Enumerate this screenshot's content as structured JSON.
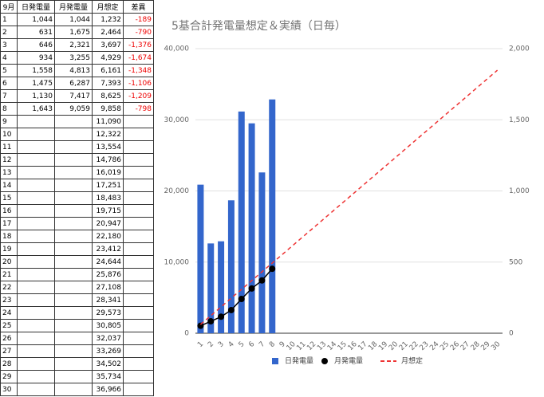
{
  "table": {
    "header": [
      "9月",
      "日発電量",
      "月発電量",
      "月想定",
      "差異"
    ],
    "rows": [
      [
        "1",
        "1,044",
        "1,044",
        "1,232",
        "-189"
      ],
      [
        "2",
        "631",
        "1,675",
        "2,464",
        "-790"
      ],
      [
        "3",
        "646",
        "2,321",
        "3,697",
        "-1,376"
      ],
      [
        "4",
        "934",
        "3,255",
        "4,929",
        "-1,674"
      ],
      [
        "5",
        "1,558",
        "4,813",
        "6,161",
        "-1,348"
      ],
      [
        "6",
        "1,475",
        "6,287",
        "7,393",
        "-1,106"
      ],
      [
        "7",
        "1,130",
        "7,417",
        "8,625",
        "-1,209"
      ],
      [
        "8",
        "1,643",
        "9,059",
        "9,858",
        "-798"
      ],
      [
        "9",
        null,
        null,
        "11,090",
        null
      ],
      [
        "10",
        null,
        null,
        "12,322",
        null
      ],
      [
        "11",
        null,
        null,
        "13,554",
        null
      ],
      [
        "12",
        null,
        null,
        "14,786",
        null
      ],
      [
        "13",
        null,
        null,
        "16,019",
        null
      ],
      [
        "14",
        null,
        null,
        "17,251",
        null
      ],
      [
        "15",
        null,
        null,
        "18,483",
        null
      ],
      [
        "16",
        null,
        null,
        "19,715",
        null
      ],
      [
        "17",
        null,
        null,
        "20,947",
        null
      ],
      [
        "18",
        null,
        null,
        "22,180",
        null
      ],
      [
        "19",
        null,
        null,
        "23,412",
        null
      ],
      [
        "20",
        null,
        null,
        "24,644",
        null
      ],
      [
        "21",
        null,
        null,
        "25,876",
        null
      ],
      [
        "22",
        null,
        null,
        "27,108",
        null
      ],
      [
        "23",
        null,
        null,
        "28,341",
        null
      ],
      [
        "24",
        null,
        null,
        "29,573",
        null
      ],
      [
        "25",
        null,
        null,
        "30,805",
        null
      ],
      [
        "26",
        null,
        null,
        "32,037",
        null
      ],
      [
        "27",
        null,
        null,
        "33,269",
        null
      ],
      [
        "28",
        null,
        null,
        "34,502",
        null
      ],
      [
        "29",
        null,
        null,
        "35,734",
        null
      ],
      [
        "30",
        null,
        null,
        "36,966",
        null
      ]
    ]
  },
  "chart_data": {
    "type": "combo",
    "title": "5基合計発電量想定＆実績（日毎）",
    "categories": [
      "1",
      "2",
      "3",
      "4",
      "5",
      "6",
      "7",
      "8",
      "9",
      "10",
      "11",
      "12",
      "13",
      "14",
      "15",
      "16",
      "17",
      "18",
      "19",
      "20",
      "21",
      "22",
      "23",
      "24",
      "25",
      "26",
      "27",
      "28",
      "29",
      "30"
    ],
    "series": [
      {
        "name": "日発電量",
        "type": "bar",
        "axis": "y2",
        "color": "#3366cc",
        "values": [
          1044,
          631,
          646,
          934,
          1558,
          1475,
          1130,
          1643,
          null,
          null,
          null,
          null,
          null,
          null,
          null,
          null,
          null,
          null,
          null,
          null,
          null,
          null,
          null,
          null,
          null,
          null,
          null,
          null,
          null,
          null
        ]
      },
      {
        "name": "月発電量",
        "type": "line",
        "markers": true,
        "color": "#000000",
        "values": [
          1044,
          1675,
          2321,
          3255,
          4813,
          6287,
          7417,
          9059,
          null,
          null,
          null,
          null,
          null,
          null,
          null,
          null,
          null,
          null,
          null,
          null,
          null,
          null,
          null,
          null,
          null,
          null,
          null,
          null,
          null,
          null
        ]
      },
      {
        "name": "月想定",
        "type": "line",
        "dashed": true,
        "color": "#ee3333",
        "values": [
          1232,
          2464,
          3697,
          4929,
          6161,
          7393,
          8625,
          9858,
          11090,
          12322,
          13554,
          14786,
          16019,
          17251,
          18483,
          19715,
          20947,
          22180,
          23412,
          24644,
          25876,
          27108,
          28341,
          29573,
          30805,
          32037,
          33269,
          34502,
          35734,
          36966
        ]
      }
    ],
    "ylim": [
      0,
      40000
    ],
    "yticks": [
      0,
      {
        "value": 10000,
        "label": "10,000"
      },
      {
        "value": 20000,
        "label": "20,000"
      },
      {
        "value": 30000,
        "label": "30,000"
      },
      {
        "value": 40000,
        "label": "40,000"
      }
    ],
    "y2lim": [
      0,
      2000
    ],
    "y2ticks": [
      0,
      500,
      {
        "value": 1000,
        "label": "1,000"
      },
      {
        "value": 1500,
        "label": "1,500"
      },
      {
        "value": 2000,
        "label": "2,000"
      }
    ],
    "grid": true,
    "legend": "bottom"
  }
}
